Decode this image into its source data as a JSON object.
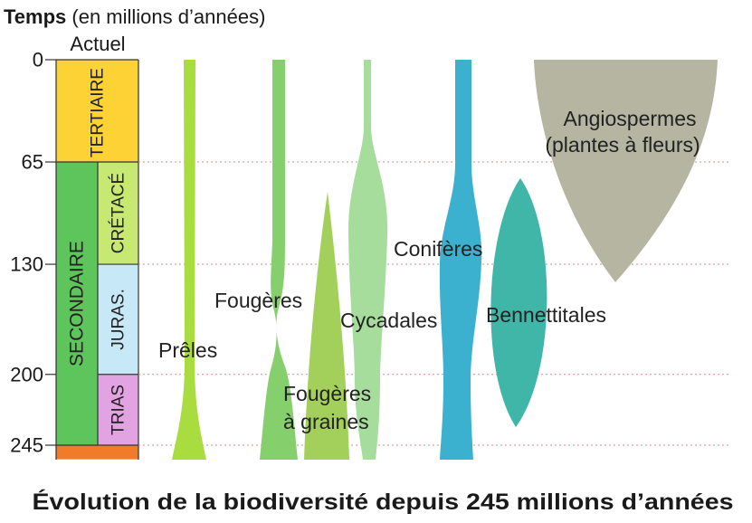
{
  "axis": {
    "title_bold": "Temps",
    "title_rest": " (en millions d’années)",
    "top_label": "Actuel",
    "ticks": [
      {
        "value": 0,
        "label": "0"
      },
      {
        "value": 65,
        "label": "65"
      },
      {
        "value": 130,
        "label": "130"
      },
      {
        "value": 200,
        "label": "200"
      },
      {
        "value": 245,
        "label": "245"
      }
    ],
    "range": [
      0,
      245
    ]
  },
  "eras": [
    {
      "id": "tertiaire",
      "label": "TERTIAIRE",
      "start": 0,
      "end": 65,
      "color": "#fdd235"
    },
    {
      "id": "secondaire",
      "label": "SECONDAIRE",
      "start": 65,
      "end": 245,
      "color": "#5dc55b"
    },
    {
      "id": "primaire",
      "label": "",
      "start": 245,
      "end": 254,
      "color": "#f07b2b"
    }
  ],
  "periods": [
    {
      "id": "cretace",
      "label": "CRÉTACÉ",
      "start": 65,
      "end": 130,
      "color": "#c7e872"
    },
    {
      "id": "jurassique",
      "label": "JURAS.",
      "start": 130,
      "end": 200,
      "color": "#c6e8f7"
    },
    {
      "id": "trias",
      "label": "TRIAS",
      "start": 200,
      "end": 245,
      "color": "#e2a3e2"
    }
  ],
  "groups": [
    {
      "id": "preles",
      "label": "Prêles",
      "color": "#a9dc3e"
    },
    {
      "id": "fougeres",
      "label": "Fougères",
      "color": "#86cf6d"
    },
    {
      "id": "fougeres-graines",
      "label_lines": [
        "Fougères",
        "à graines"
      ],
      "color": "#a3d05b"
    },
    {
      "id": "cycadales",
      "label": "Cycadales",
      "color": "#a6dc9c"
    },
    {
      "id": "coniferes",
      "label": "Conifères",
      "color": "#3cb1cf"
    },
    {
      "id": "bennettitales",
      "label": "Bennettitales",
      "color": "#3fb6a8"
    },
    {
      "id": "angiospermes",
      "label_lines": [
        "Angiospermes",
        "(plantes à fleurs)"
      ],
      "color": "#b5b5a2"
    }
  ],
  "caption": "Évolution de la biodiversité depuis 245 millions d’années"
}
